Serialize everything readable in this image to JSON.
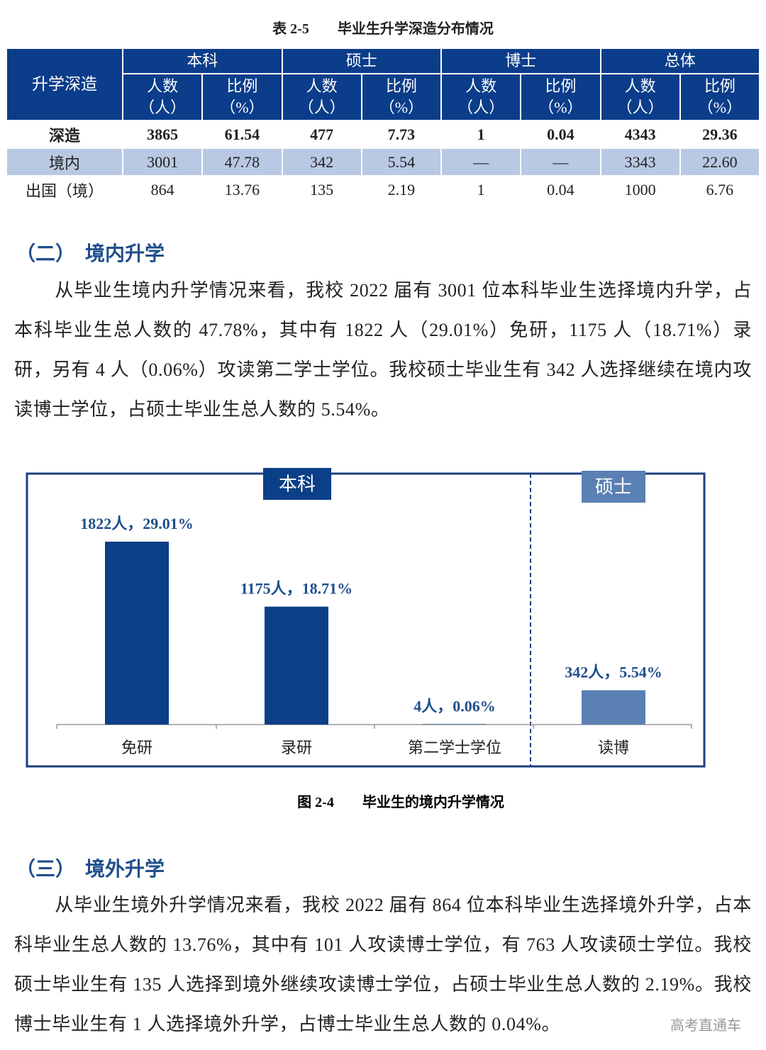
{
  "table": {
    "caption": "表 2-5　　毕业生升学深造分布情况",
    "corner": "升学深造",
    "columns": [
      {
        "group": "本科",
        "subs": [
          [
            "人数",
            "（人）"
          ],
          [
            "比例",
            "（%）"
          ]
        ]
      },
      {
        "group": "硕士",
        "subs": [
          [
            "人数",
            "（人）"
          ],
          [
            "比例",
            "（%）"
          ]
        ]
      },
      {
        "group": "博士",
        "subs": [
          [
            "人数",
            "（人）"
          ],
          [
            "比例",
            "（%）"
          ]
        ]
      },
      {
        "group": "总体",
        "subs": [
          [
            "人数",
            "（人）"
          ],
          [
            "比例",
            "（%）"
          ]
        ]
      }
    ],
    "rows": [
      [
        "深造",
        "3865",
        "61.54",
        "477",
        "7.73",
        "1",
        "0.04",
        "4343",
        "29.36"
      ],
      [
        "境内",
        "3001",
        "47.78",
        "342",
        "5.54",
        "—",
        "—",
        "3343",
        "22.60"
      ],
      [
        "出国（境）",
        "864",
        "13.76",
        "135",
        "2.19",
        "1",
        "0.04",
        "1000",
        "6.76"
      ]
    ]
  },
  "section2": {
    "heading": "（二）　境内升学",
    "paragraph": "从毕业生境内升学情况来看，我校 2022 届有 3001 位本科毕业生选择境内升学，占本科毕业生总人数的 47.78%，其中有 1822 人（29.01%）免研，1175 人（18.71%）录研，另有 4 人（0.06%）攻读第二学士学位。我校硕士毕业生有 342 人选择继续在境内攻读博士学位，占硕士毕业生总人数的 5.54%。"
  },
  "figure": {
    "type": "bar",
    "groups": [
      {
        "name": "本科",
        "color": "#0b3f87",
        "categories": [
          "免研",
          "录研",
          "第二学士学位"
        ],
        "values": [
          1822,
          1175,
          4
        ],
        "value_labels": [
          "1822人，29.01%",
          "1175人，18.71%",
          "4人，0.06%"
        ]
      },
      {
        "name": "硕士",
        "color": "#5a80b4",
        "categories": [
          "读博"
        ],
        "values": [
          342
        ],
        "value_labels": [
          "342人，5.54%"
        ]
      }
    ],
    "caption": "图 2-4　　毕业生的境内升学情况"
  },
  "section3": {
    "heading": "（三）　境外升学",
    "paragraph": "从毕业生境外升学情况来看，我校 2022 届有 864 位本科毕业生选择境外升学，占本科毕业生总人数的 13.76%，其中有 101 人攻读博士学位，有 763 人攻读硕士学位。我校硕士毕业生有 135 人选择到境外继续攻读博士学位，占硕士毕业生总人数的 2.19%。我校博士毕业生有 1 人选择境外升学，占博士毕业生总人数的 0.04%。"
  },
  "watermark": "高考直通车"
}
